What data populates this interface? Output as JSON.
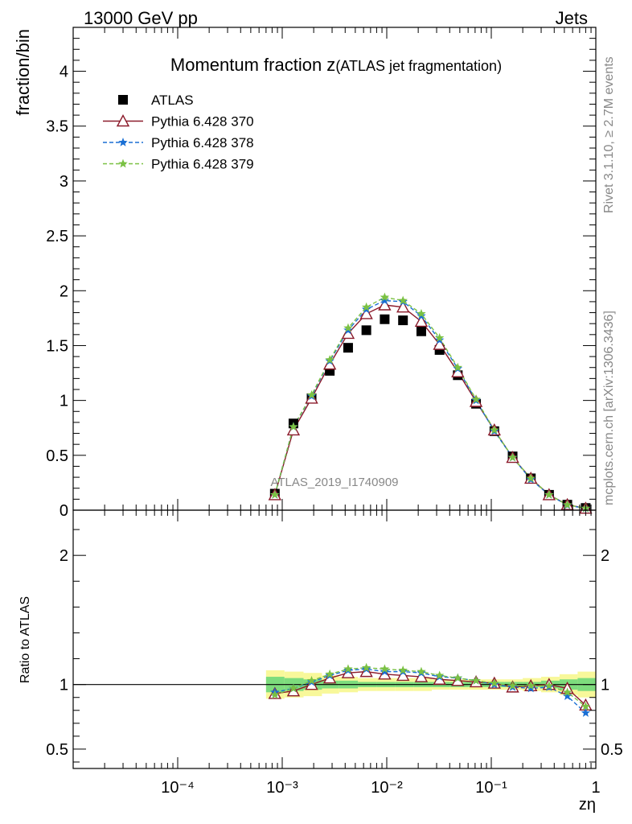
{
  "header": {
    "left": "13000 GeV pp",
    "right": "Jets"
  },
  "side_labels": {
    "rivet": "Rivet 3.1.10, ≥ 2.7M events",
    "mcplots": "mcplots.cern.ch [arXiv:1306.3436]"
  },
  "watermark": "ATLAS_2019_I1740909",
  "chart_data": [
    {
      "type": "scatter",
      "title_main": "Momentum fraction z",
      "title_sub": "(ATLAS jet fragmentation)",
      "ylabel": "fraction/bin",
      "xscale": "log",
      "xlim": [
        1e-05,
        1
      ],
      "ylim": [
        0,
        4.4
      ],
      "ytick_labels": [
        "0",
        "0.5",
        "1",
        "1.5",
        "2",
        "2.5",
        "3",
        "3.5",
        "4"
      ],
      "legend_placement": "top-left",
      "x": [
        0.00085,
        0.00128,
        0.00191,
        0.00285,
        0.00427,
        0.00638,
        0.00955,
        0.0143,
        0.0214,
        0.032,
        0.0478,
        0.0715,
        0.107,
        0.16,
        0.239,
        0.357,
        0.534,
        0.8
      ],
      "series": [
        {
          "name": "ATLAS",
          "color": "#000000",
          "marker": "square",
          "values": [
            0.15,
            0.79,
            1.02,
            1.27,
            1.48,
            1.64,
            1.74,
            1.73,
            1.63,
            1.46,
            1.23,
            0.97,
            0.72,
            0.49,
            0.29,
            0.14,
            0.05,
            0.02
          ]
        },
        {
          "name": "Pythia 6.428 370",
          "color": "#8b1a2a",
          "marker": "triangle-open",
          "line": "solid",
          "values": [
            0.14,
            0.73,
            1.02,
            1.33,
            1.61,
            1.79,
            1.87,
            1.85,
            1.72,
            1.51,
            1.26,
            0.99,
            0.73,
            0.48,
            0.29,
            0.14,
            0.05,
            0.017
          ]
        },
        {
          "name": "Pythia 6.428 378",
          "color": "#1a6fd4",
          "marker": "star",
          "line": "dashed",
          "values": [
            0.14,
            0.76,
            1.04,
            1.36,
            1.64,
            1.83,
            1.91,
            1.9,
            1.77,
            1.55,
            1.29,
            1.0,
            0.72,
            0.48,
            0.28,
            0.14,
            0.045,
            0.016
          ]
        },
        {
          "name": "Pythia 6.428 379",
          "color": "#7ac143",
          "marker": "star",
          "line": "dashed",
          "values": [
            0.14,
            0.76,
            1.05,
            1.37,
            1.66,
            1.85,
            1.94,
            1.91,
            1.79,
            1.57,
            1.3,
            1.01,
            0.73,
            0.48,
            0.29,
            0.14,
            0.048,
            0.017
          ]
        }
      ]
    },
    {
      "type": "scatter",
      "ylabel": "Ratio to ATLAS",
      "xlabel": "zη",
      "xscale": "log",
      "xlim": [
        1e-05,
        1
      ],
      "ylim": [
        0.35,
        2.35
      ],
      "ytick_labels": [
        "0.5",
        "1",
        "2"
      ],
      "xtick_labels": [
        "10⁻⁴",
        "10⁻³",
        "10⁻²",
        "10⁻¹",
        "1"
      ],
      "reference_line": 1,
      "x": [
        0.00085,
        0.00128,
        0.00191,
        0.00285,
        0.00427,
        0.00638,
        0.00955,
        0.0143,
        0.0214,
        0.032,
        0.0478,
        0.0715,
        0.107,
        0.16,
        0.239,
        0.357,
        0.534,
        0.8
      ],
      "band_bins": [
        0.0007,
        0.00105,
        0.0016,
        0.0024,
        0.0035,
        0.0053,
        0.008,
        0.012,
        0.018,
        0.027,
        0.04,
        0.06,
        0.09,
        0.135,
        0.2,
        0.3,
        0.45,
        0.67,
        1.0
      ],
      "bands": [
        {
          "name": "stat",
          "color": "#7ddc7d",
          "lo": [
            0.94,
            0.95,
            0.96,
            0.97,
            0.97,
            0.98,
            0.98,
            0.98,
            0.98,
            0.98,
            0.98,
            0.98,
            0.98,
            0.98,
            0.98,
            0.97,
            0.96,
            0.95
          ],
          "hi": [
            1.06,
            1.05,
            1.04,
            1.03,
            1.03,
            1.02,
            1.02,
            1.02,
            1.02,
            1.02,
            1.02,
            1.02,
            1.02,
            1.02,
            1.02,
            1.03,
            1.04,
            1.05
          ]
        },
        {
          "name": "total",
          "color": "#f8f89a",
          "lo": [
            0.89,
            0.9,
            0.91,
            0.93,
            0.94,
            0.95,
            0.95,
            0.95,
            0.95,
            0.96,
            0.96,
            0.96,
            0.96,
            0.96,
            0.95,
            0.94,
            0.92,
            0.9
          ],
          "hi": [
            1.11,
            1.1,
            1.09,
            1.07,
            1.06,
            1.05,
            1.05,
            1.05,
            1.05,
            1.04,
            1.04,
            1.04,
            1.04,
            1.04,
            1.05,
            1.06,
            1.08,
            1.1
          ]
        }
      ],
      "series": [
        {
          "name": "Pythia 6.428 370",
          "color": "#8b1a2a",
          "marker": "triangle-open",
          "line": "solid",
          "values": [
            0.93,
            0.95,
            1.0,
            1.05,
            1.09,
            1.1,
            1.08,
            1.07,
            1.06,
            1.04,
            1.03,
            1.02,
            1.01,
            0.98,
            0.99,
            1.0,
            0.97,
            0.84
          ]
        },
        {
          "name": "Pythia 6.428 378",
          "color": "#1a6fd4",
          "marker": "star",
          "line": "dashed",
          "values": [
            0.94,
            0.97,
            1.02,
            1.07,
            1.11,
            1.12,
            1.1,
            1.1,
            1.09,
            1.06,
            1.05,
            1.03,
            1.0,
            0.98,
            0.97,
            0.98,
            0.91,
            0.78
          ]
        },
        {
          "name": "Pythia 6.428 379",
          "color": "#7ac143",
          "marker": "star",
          "line": "dashed",
          "values": [
            0.92,
            0.97,
            1.03,
            1.08,
            1.12,
            1.13,
            1.12,
            1.11,
            1.1,
            1.07,
            1.05,
            1.03,
            1.01,
            0.99,
            0.99,
            0.99,
            0.94,
            0.83
          ]
        }
      ]
    }
  ]
}
